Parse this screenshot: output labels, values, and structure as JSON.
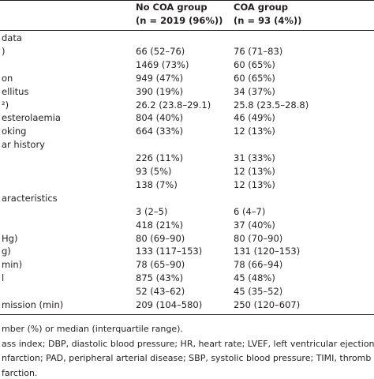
{
  "table": {
    "columns": [
      {
        "title": "No COA group",
        "subtitle": "(n = 2019 (96%))"
      },
      {
        "title": "COA group",
        "subtitle": "(n = 93 (4%))"
      }
    ],
    "rows": [
      {
        "label": "data"
      },
      {
        "label": ")",
        "values": [
          "66 (52–76)",
          "76 (71–83)"
        ]
      },
      {
        "values": [
          "1469 (73%)",
          "60 (65%)"
        ]
      },
      {
        "label": "on",
        "values": [
          "949 (47%)",
          "60 (65%)"
        ]
      },
      {
        "label": "ellitus",
        "values": [
          "390 (19%)",
          "34 (37%)"
        ]
      },
      {
        "label": "²)",
        "values": [
          "26.2 (23.8–29.1)",
          "25.8 (23.5–28.8)"
        ]
      },
      {
        "label": "esterolaemia",
        "values": [
          "804 (40%)",
          "46 (49%)"
        ]
      },
      {
        "label": "oking",
        "values": [
          "664 (33%)",
          "12 (13%)"
        ]
      },
      {
        "label": "ar history"
      },
      {
        "values": [
          "226 (11%)",
          "31 (33%)"
        ]
      },
      {
        "values": [
          "93 (5%)",
          "12 (13%)"
        ]
      },
      {
        "values": [
          "138 (7%)",
          "12 (13%)"
        ]
      },
      {
        "label": "aracteristics"
      },
      {
        "values": [
          "3 (2–5)",
          "6 (4–7)"
        ]
      },
      {
        "values": [
          "418 (21%)",
          "37 (40%)"
        ]
      },
      {
        "label": "Hg)",
        "values": [
          "80 (69–90)",
          "80 (70–90)"
        ]
      },
      {
        "label": "g)",
        "values": [
          "133 (117–153)",
          "131 (120–153)"
        ]
      },
      {
        "label": "min)",
        "values": [
          "78 (65–90)",
          "78 (66–94)"
        ]
      },
      {
        "label": "l",
        "values": [
          "875 (43%)",
          "45 (48%)"
        ]
      },
      {
        "values": [
          "52 (43–62)",
          "45 (35–52)"
        ]
      },
      {
        "label": "mission (min)",
        "values": [
          "209 (104–580)",
          "250 (120–607)"
        ]
      }
    ],
    "footnotes": [
      "mber (%) or median (interquartile range).",
      "ass index; DBP, diastolic blood pressure; HR, heart rate; LVEF, left ventricular ejection",
      "nfarction; PAD, peripheral arterial disease; SBP, systolic blood pressure; TIMI, thromb",
      "farction."
    ]
  }
}
